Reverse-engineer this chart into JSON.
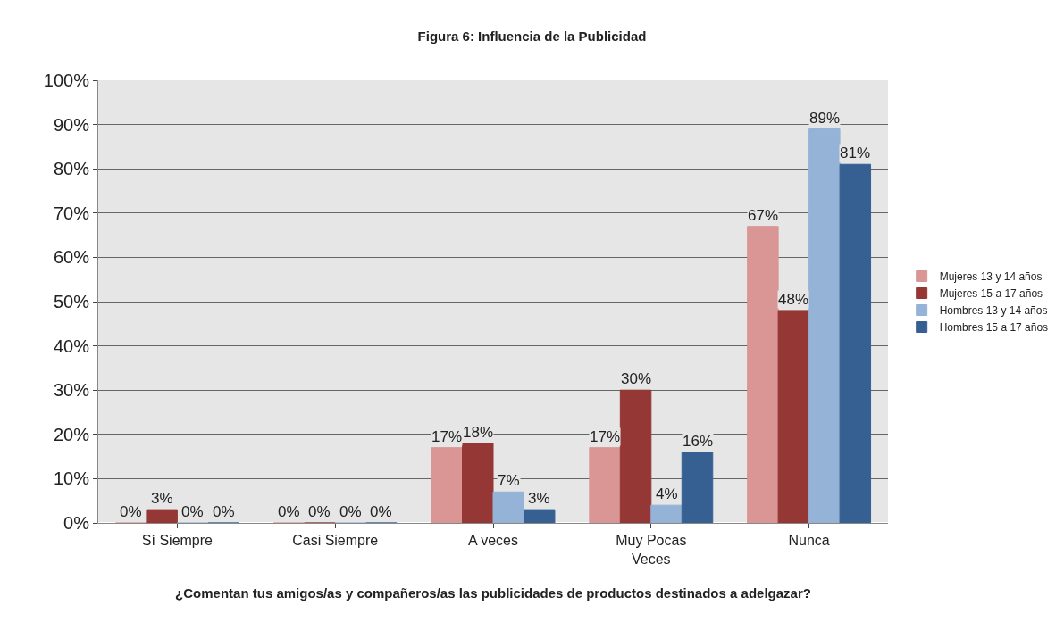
{
  "chart_data": {
    "type": "bar",
    "title": "Figura 6: Influencia de la Publicidad",
    "xlabel": "¿Comentan tus amigos/as y compañeros/as las publicidades de productos destinados a adelgazar?",
    "categories": [
      "Sí Siempre",
      "Casi Siempre",
      "A veces",
      "Muy Pocas Veces",
      "Nunca"
    ],
    "series": [
      {
        "name": "Mujeres 13 y 14 años",
        "color": "#d99694",
        "values": [
          0,
          0,
          17,
          17,
          67
        ],
        "value_labels": [
          "0%",
          "0%",
          "17%",
          "17%",
          "67%"
        ]
      },
      {
        "name": "Mujeres 15 a 17 años",
        "color": "#953735",
        "values": [
          3,
          0,
          18,
          30,
          48
        ],
        "value_labels": [
          "3%",
          "0%",
          "18%",
          "30%",
          "48%"
        ]
      },
      {
        "name": "Hombres 13 y 14 años",
        "color": "#95b3d7",
        "values": [
          0,
          0,
          7,
          4,
          89
        ],
        "value_labels": [
          "0%",
          "0%",
          "7%",
          "4%",
          "89%"
        ]
      },
      {
        "name": "Hombres 15 a 17 años",
        "color": "#376092",
        "values": [
          0,
          0,
          3,
          16,
          81
        ],
        "value_labels": [
          "0%",
          "0%",
          "3%",
          "16%",
          "81%"
        ]
      }
    ],
    "ylim": [
      0,
      100
    ],
    "yticks": [
      {
        "value": 0,
        "label": "0%"
      },
      {
        "value": 10,
        "label": "10%"
      },
      {
        "value": 20,
        "label": "20%"
      },
      {
        "value": 30,
        "label": "30%"
      },
      {
        "value": 40,
        "label": "40%"
      },
      {
        "value": 50,
        "label": "50%"
      },
      {
        "value": 60,
        "label": "60%"
      },
      {
        "value": 70,
        "label": "70%"
      },
      {
        "value": 80,
        "label": "80%"
      },
      {
        "value": 90,
        "label": "90%"
      },
      {
        "value": 100,
        "label": "100%"
      }
    ],
    "grid": "y",
    "legend": "right"
  }
}
